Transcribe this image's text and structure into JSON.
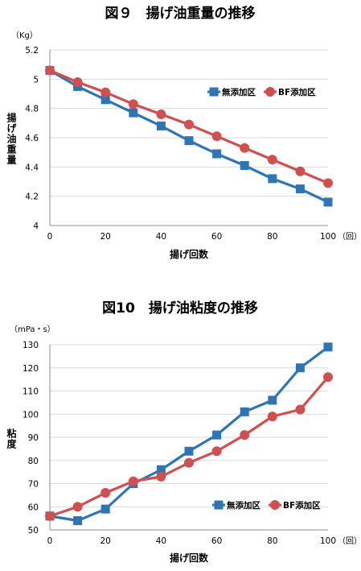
{
  "colors": {
    "series_a": "#2e75b6",
    "series_b": "#d0504f",
    "grid": "#d9d9d9",
    "axis": "#8c8c8c"
  },
  "chart_data": [
    {
      "type": "line",
      "title": "図９　揚げ油重量の推移",
      "ylabel": "揚げ油重量",
      "yunit": "（Kg）",
      "xlabel": "揚げ回数",
      "xunit": "（回）",
      "xlim": [
        0,
        100
      ],
      "ylim": [
        4,
        5.2
      ],
      "xticks": [
        0,
        20,
        40,
        60,
        80,
        100
      ],
      "yticks": [
        "4",
        "4.2",
        "4.4",
        "4.6",
        "4.8",
        "5",
        "5.2"
      ],
      "grid": true,
      "legend_position": "right-middle",
      "x": [
        0,
        10,
        20,
        30,
        40,
        50,
        60,
        70,
        80,
        90,
        100
      ],
      "series": [
        {
          "name": "無添加区",
          "marker": "square",
          "values": [
            5.06,
            4.95,
            4.86,
            4.77,
            4.68,
            4.58,
            4.49,
            4.41,
            4.32,
            4.25,
            4.16
          ]
        },
        {
          "name": "BF添加区",
          "marker": "circle",
          "values": [
            5.06,
            4.98,
            4.91,
            4.83,
            4.76,
            4.69,
            4.61,
            4.53,
            4.45,
            4.37,
            4.29
          ]
        }
      ]
    },
    {
      "type": "line",
      "title": "図10　揚げ油粘度の推移",
      "ylabel": "粘度",
      "yunit": "（mPa・s）",
      "xlabel": "揚げ回数",
      "xunit": "（回）",
      "xlim": [
        0,
        100
      ],
      "ylim": [
        50,
        130
      ],
      "xticks": [
        0,
        20,
        40,
        60,
        80,
        100
      ],
      "yticks": [
        "50",
        "60",
        "70",
        "80",
        "90",
        "100",
        "110",
        "120",
        "130"
      ],
      "grid": true,
      "legend_position": "bottom-right",
      "x": [
        0,
        10,
        20,
        30,
        40,
        50,
        60,
        70,
        80,
        90,
        100
      ],
      "series": [
        {
          "name": "無添加区",
          "marker": "square",
          "values": [
            56,
            54,
            59,
            70,
            76,
            84,
            91,
            101,
            106,
            120,
            129
          ]
        },
        {
          "name": "BF添加区",
          "marker": "circle",
          "values": [
            56,
            60,
            66,
            71,
            73,
            79,
            84,
            91,
            99,
            102,
            116
          ]
        }
      ]
    }
  ]
}
